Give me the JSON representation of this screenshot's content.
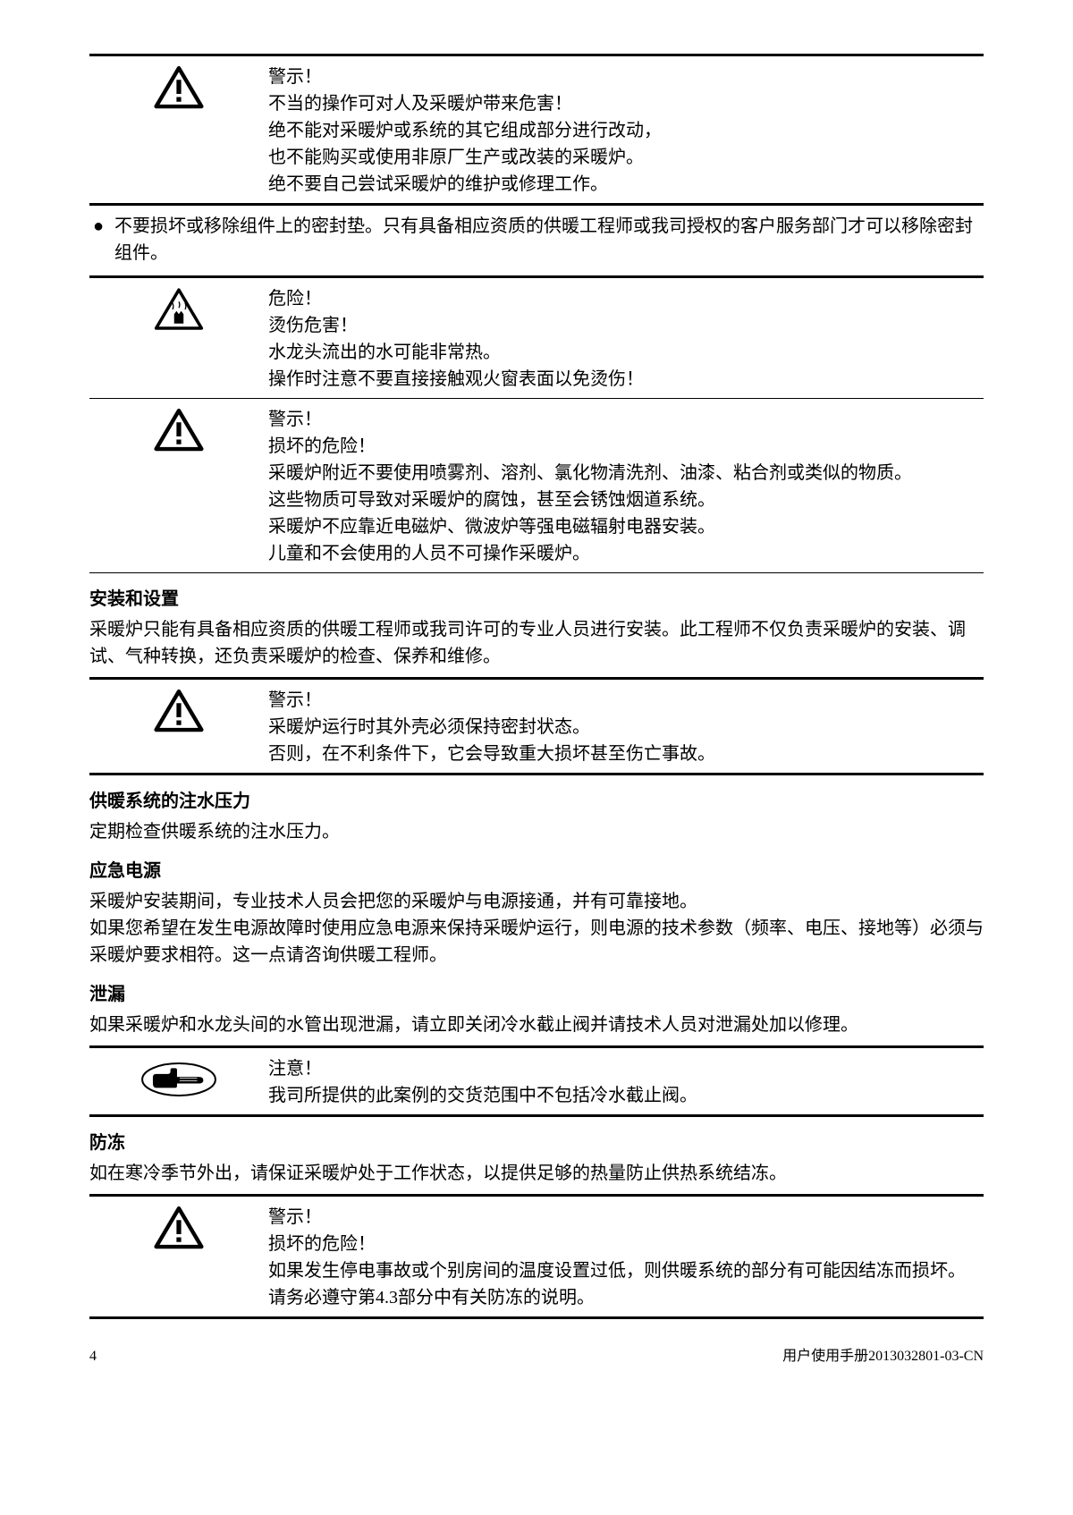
{
  "page": {
    "number": "4",
    "footer_right": "用户使用手册2013032801-03-CN"
  },
  "colors": {
    "text": "#000000",
    "background": "#ffffff",
    "rule": "#000000"
  },
  "typography": {
    "body_fontsize_pt": 15,
    "heading_weight": "bold",
    "line_height": 1.5
  },
  "icons": {
    "warning_triangle": "triangle with exclamation mark",
    "danger_hand": "triangle with hand/burn symbol",
    "note_pointer": "pointing hand in oval"
  },
  "blocks": [
    {
      "type": "rule-thick"
    },
    {
      "type": "warning",
      "icon": "warning_triangle",
      "lines": [
        "警示！",
        "不当的操作可对人及采暖炉带来危害！",
        "绝不能对采暖炉或系统的其它组成部分进行改动，",
        "也不能购买或使用非原厂生产或改装的采暖炉。",
        "绝不要自己尝试采暖炉的维护或修理工作。"
      ]
    },
    {
      "type": "rule-thick"
    },
    {
      "type": "bullet",
      "text": "不要损坏或移除组件上的密封垫。只有具备相应资质的供暖工程师或我司授权的客户服务部门才可以移除密封组件。"
    },
    {
      "type": "rule-thick"
    },
    {
      "type": "warning",
      "icon": "danger_hand",
      "lines": [
        "危险！",
        "烫伤危害！",
        "水龙头流出的水可能非常热。",
        "操作时注意不要直接接触观火窗表面以免烫伤！"
      ]
    },
    {
      "type": "rule-thin"
    },
    {
      "type": "warning",
      "icon": "warning_triangle",
      "lines": [
        "警示！",
        "损坏的危险！",
        "采暖炉附近不要使用喷雾剂、溶剂、氯化物清洗剂、油漆、粘合剂或类似的物质。",
        "这些物质可导致对采暖炉的腐蚀，甚至会锈蚀烟道系统。",
        "采暖炉不应靠近电磁炉、微波炉等强电磁辐射电器安装。",
        "儿童和不会使用的人员不可操作采暖炉。"
      ]
    },
    {
      "type": "rule-thin"
    },
    {
      "type": "heading",
      "text": "安装和设置"
    },
    {
      "type": "paragraph",
      "text": "采暖炉只能有具备相应资质的供暖工程师或我司许可的专业人员进行安装。此工程师不仅负责采暖炉的安装、调试、气种转换，还负责采暖炉的检查、保养和维修。"
    },
    {
      "type": "rule-thick"
    },
    {
      "type": "warning",
      "icon": "warning_triangle",
      "lines": [
        "警示！",
        "采暖炉运行时其外壳必须保持密封状态。",
        "否则，在不利条件下，它会导致重大损坏甚至伤亡事故。"
      ]
    },
    {
      "type": "rule-thick"
    },
    {
      "type": "heading",
      "text": "供暖系统的注水压力"
    },
    {
      "type": "paragraph",
      "text": "定期检查供暖系统的注水压力。"
    },
    {
      "type": "heading",
      "text": "应急电源"
    },
    {
      "type": "paragraph",
      "text": "采暖炉安装期间，专业技术人员会把您的采暖炉与电源接通，并有可靠接地。\n如果您希望在发生电源故障时使用应急电源来保持采暖炉运行，则电源的技术参数（频率、电压、接地等）必须与采暖炉要求相符。这一点请咨询供暖工程师。"
    },
    {
      "type": "heading",
      "text": "泄漏"
    },
    {
      "type": "paragraph",
      "text": "如果采暖炉和水龙头间的水管出现泄漏，请立即关闭冷水截止阀并请技术人员对泄漏处加以修理。"
    },
    {
      "type": "rule-thick"
    },
    {
      "type": "warning",
      "icon": "note_pointer",
      "lines": [
        "注意！",
        "我司所提供的此案例的交货范围中不包括冷水截止阀。"
      ]
    },
    {
      "type": "rule-thick"
    },
    {
      "type": "heading",
      "text": "防冻"
    },
    {
      "type": "paragraph",
      "text": "如在寒冷季节外出，请保证采暖炉处于工作状态，以提供足够的热量防止供热系统结冻。"
    },
    {
      "type": "rule-thick"
    },
    {
      "type": "warning",
      "icon": "warning_triangle",
      "lines": [
        "警示！",
        "损坏的危险！",
        "如果发生停电事故或个别房间的温度设置过低，则供暖系统的部分有可能因结冻而损坏。",
        "请务必遵守第4.3部分中有关防冻的说明。"
      ]
    },
    {
      "type": "rule-thick"
    }
  ]
}
